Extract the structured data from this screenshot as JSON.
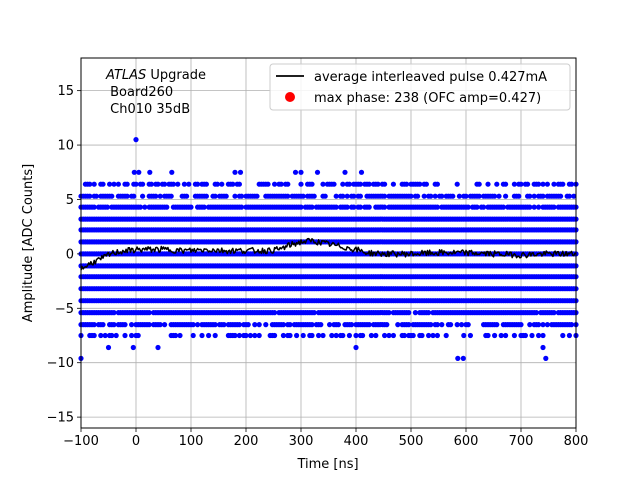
{
  "chart_data": {
    "type": "scatter",
    "xlabel": "Time [ns]",
    "ylabel": "Amplitude [ADC Counts]",
    "xlim": [
      -100,
      800
    ],
    "ylim": [
      -16,
      18
    ],
    "xticks": [
      -100,
      0,
      100,
      200,
      300,
      400,
      500,
      600,
      700,
      800
    ],
    "yticks": [
      -15,
      -10,
      -5,
      0,
      5,
      10,
      15
    ],
    "grid": true,
    "legend_position": "top-right",
    "annotation": {
      "italic": "ATLAS",
      "rest": " Upgrade",
      "line2": " Board260",
      "line3": " Ch010 35dB"
    },
    "series": [
      {
        "name": "average interleaved pulse 0.427mA",
        "kind": "line",
        "color": "#000000",
        "points": [
          [
            -100,
            -1.4
          ],
          [
            -90,
            -1.1
          ],
          [
            -80,
            -0.8
          ],
          [
            -70,
            -0.6
          ],
          [
            -60,
            -0.4
          ],
          [
            -50,
            -0.1
          ],
          [
            -40,
            0.1
          ],
          [
            -30,
            0.2
          ],
          [
            -20,
            0.3
          ],
          [
            -10,
            0.3
          ],
          [
            0,
            0.4
          ],
          [
            20,
            0.4
          ],
          [
            40,
            0.4
          ],
          [
            60,
            0.4
          ],
          [
            80,
            0.3
          ],
          [
            100,
            0.3
          ],
          [
            130,
            0.4
          ],
          [
            160,
            0.3
          ],
          [
            200,
            0.3
          ],
          [
            240,
            0.3
          ],
          [
            260,
            0.4
          ],
          [
            280,
            0.8
          ],
          [
            300,
            1.1
          ],
          [
            320,
            1.2
          ],
          [
            340,
            1.0
          ],
          [
            360,
            0.8
          ],
          [
            380,
            0.6
          ],
          [
            400,
            0.4
          ],
          [
            420,
            0.1
          ],
          [
            450,
            0.0
          ],
          [
            500,
            0.0
          ],
          [
            550,
            0.1
          ],
          [
            600,
            0.1
          ],
          [
            650,
            0.0
          ],
          [
            700,
            -0.1
          ],
          [
            750,
            0.0
          ],
          [
            800,
            0.0
          ]
        ]
      },
      {
        "name": "max phase: 238 (OFC amp=0.427)",
        "kind": "marker",
        "color": "#ff0000",
        "points": []
      },
      {
        "name": "",
        "kind": "scatter",
        "color": "#0000ff",
        "x_start": -100,
        "x_end": 800,
        "levels": [
          {
            "y": 6.4,
            "density": 0.45
          },
          {
            "y": 5.3,
            "density": 0.6
          },
          {
            "y": 4.3,
            "density": 0.85
          },
          {
            "y": 3.2,
            "density": 1.0
          },
          {
            "y": 2.2,
            "density": 1.0
          },
          {
            "y": 1.1,
            "density": 1.0
          },
          {
            "y": 0.0,
            "density": 1.0
          },
          {
            "y": -1.1,
            "density": 1.0
          },
          {
            "y": -2.1,
            "density": 1.0
          },
          {
            "y": -3.2,
            "density": 1.0
          },
          {
            "y": -4.3,
            "density": 1.0
          },
          {
            "y": -5.4,
            "density": 0.95
          },
          {
            "y": -6.5,
            "density": 0.7
          },
          {
            "y": -7.5,
            "density": 0.35
          }
        ],
        "outliers": [
          [
            0,
            10.5
          ],
          [
            -3,
            7.5
          ],
          [
            5,
            7.5
          ],
          [
            25,
            7.5
          ],
          [
            65,
            7.5
          ],
          [
            180,
            7.5
          ],
          [
            190,
            7.5
          ],
          [
            290,
            7.5
          ],
          [
            300,
            7.5
          ],
          [
            330,
            7.5
          ],
          [
            380,
            7.5
          ],
          [
            410,
            7.5
          ],
          [
            -100,
            -9.6
          ],
          [
            -50,
            -8.6
          ],
          [
            -5,
            -8.6
          ],
          [
            40,
            -8.6
          ],
          [
            400,
            -8.6
          ],
          [
            585,
            -9.6
          ],
          [
            595,
            -9.6
          ],
          [
            745,
            -9.6
          ],
          [
            740,
            -8.6
          ]
        ]
      }
    ]
  }
}
